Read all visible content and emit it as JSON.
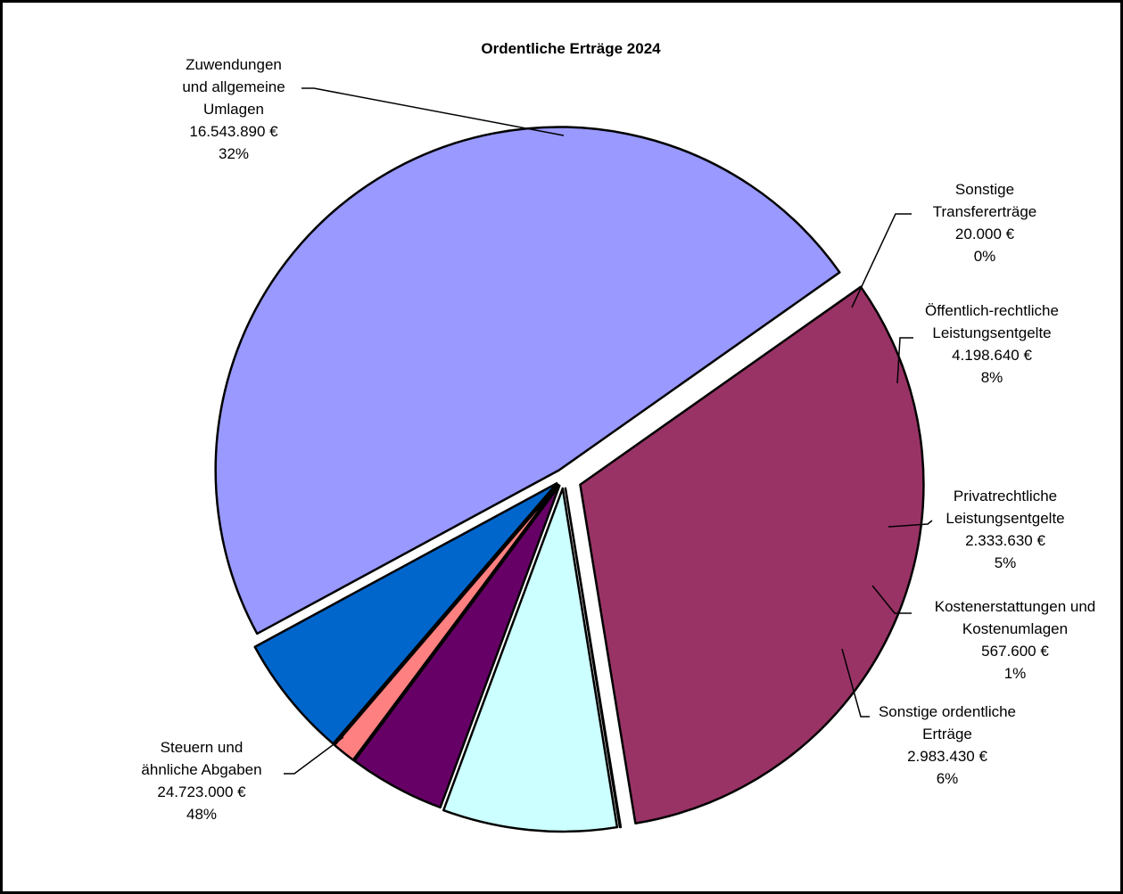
{
  "chart_data": {
    "type": "pie",
    "title": "Ordentliche Erträge 2024",
    "slices": [
      {
        "label": [
          "Zuwendungen",
          "und allgemeine",
          "Umlagen"
        ],
        "value": 16543890,
        "value_label": "16.543.890 €",
        "percent_label": "32%",
        "color": "#993366"
      },
      {
        "label": [
          "Sonstige",
          "Transfererträge"
        ],
        "value": 20000,
        "value_label": "20.000 €",
        "percent_label": "0%",
        "color": "#CCCCFF"
      },
      {
        "label": [
          "Öffentlich-rechtliche",
          "Leistungsentgelte"
        ],
        "value": 4198640,
        "value_label": "4.198.640 €",
        "percent_label": "8%",
        "color": "#CCFFFF"
      },
      {
        "label": [
          "Privatrechtliche",
          "Leistungsentgelte"
        ],
        "value": 2333630,
        "value_label": "2.333.630 €",
        "percent_label": "5%",
        "color": "#660066"
      },
      {
        "label": [
          "Kostenerstattungen und",
          "Kostenumlagen"
        ],
        "value": 567600,
        "value_label": "567.600 €",
        "percent_label": "1%",
        "color": "#FF8080"
      },
      {
        "label": [
          "Sonstige ordentliche",
          "Erträge"
        ],
        "value": 2983430,
        "value_label": "2.983.430 €",
        "percent_label": "6%",
        "color": "#0066CC"
      },
      {
        "label": [
          "Steuern und",
          "ähnliche Abgaben"
        ],
        "value": 24723000,
        "value_label": "24.723.000 €",
        "percent_label": "48%",
        "color": "#9999FF"
      }
    ]
  }
}
